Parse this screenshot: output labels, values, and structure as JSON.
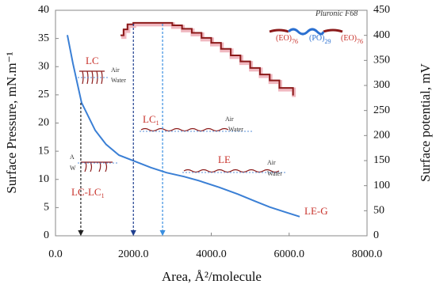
{
  "chart_data": {
    "type": "line",
    "xlabel": "Area, Å²/molecule",
    "ylabel": "Surface Pressure, mN.m⁻¹",
    "y2label": "Surface potential, mV",
    "xlim": [
      0,
      8000
    ],
    "xticks": [
      {
        "value": 0,
        "label": "0.0"
      },
      {
        "value": 2000,
        "label": "2000.0"
      },
      {
        "value": 4000,
        "label": "4000.0"
      },
      {
        "value": 6000,
        "label": "6000.0"
      },
      {
        "value": 8000,
        "label": "8000.0"
      }
    ],
    "ylim": [
      0,
      40
    ],
    "yticks": [
      0,
      5,
      10,
      15,
      20,
      25,
      30,
      35,
      40
    ],
    "y2lim": [
      0,
      450
    ],
    "y2ticks": [
      0,
      50,
      100,
      150,
      200,
      250,
      300,
      350,
      400,
      450
    ],
    "series": [
      {
        "color": "#3a7fd5",
        "x": [
          305,
          450,
          670,
          1020,
          1300,
          1630,
          2080,
          2450,
          2850,
          3300,
          3670,
          4200,
          4680,
          5100,
          5500,
          5900,
          6270
        ],
        "values": [
          35.6,
          30.5,
          23.6,
          18.7,
          16.2,
          14.3,
          13.1,
          12.1,
          11.2,
          10.5,
          9.8,
          8.6,
          7.4,
          6.2,
          5.1,
          4.2,
          3.4
        ]
      },
      {
        "color": "#8b1a1a",
        "axis": "y2",
        "step": true,
        "x": [
          1670,
          1750,
          1850,
          2000,
          2750,
          3000,
          3250,
          3500,
          3750,
          4000,
          4250,
          4500,
          4750,
          5000,
          5250,
          5500,
          5750,
          6100
        ],
        "values": [
          400,
          412,
          422,
          425,
          425,
          420,
          413,
          405,
          395,
          385,
          373,
          360,
          348,
          335,
          322,
          310,
          295,
          280
        ]
      }
    ],
    "arrows": [
      {
        "x": 650,
        "color": "#222222"
      },
      {
        "x": 2000,
        "color": "#1f3f8f"
      },
      {
        "x": 2750,
        "color": "#3a8fe0"
      }
    ],
    "annotations": [
      {
        "text": "LC",
        "color": "#c8312a"
      },
      {
        "text": "Air",
        "color": "#333333"
      },
      {
        "text": "Water",
        "color": "#333333"
      },
      {
        "text": "LC",
        "sub": "1",
        "color": "#c8312a"
      },
      {
        "text": "Air",
        "color": "#333333"
      },
      {
        "text": "Water",
        "color": "#333333"
      },
      {
        "text": "A",
        "color": "#333333"
      },
      {
        "text": "W",
        "color": "#333333"
      },
      {
        "text": "LC-LC",
        "sub": "1",
        "color": "#c8312a"
      },
      {
        "text": "LE",
        "color": "#c8312a"
      },
      {
        "text": "Air",
        "color": "#333333"
      },
      {
        "text": "Water",
        "color": "#333333"
      },
      {
        "text": "LE-G",
        "color": "#c8312a"
      },
      {
        "text": "Pluronic F68",
        "color": "#333333",
        "italic": true
      },
      {
        "text": "(EO)",
        "sub": "76",
        "color": "#c8312a"
      },
      {
        "text": "(PO)",
        "sub": "29",
        "color": "#2a6fd0"
      },
      {
        "text": "(EO)",
        "sub": "76",
        "color": "#c8312a"
      }
    ]
  }
}
